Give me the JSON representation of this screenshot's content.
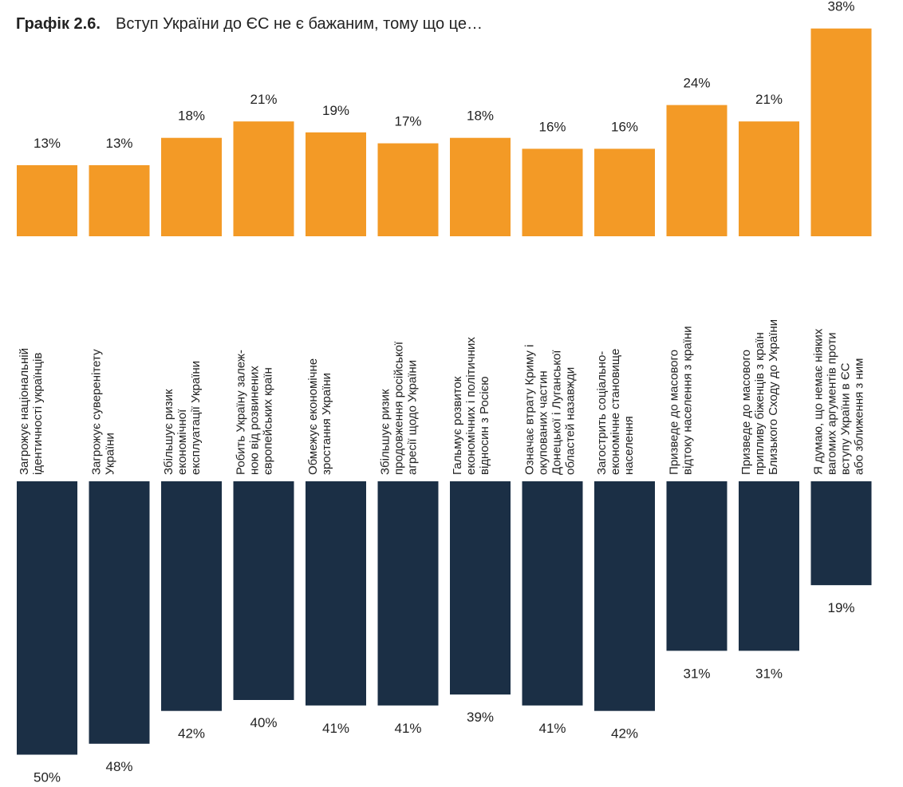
{
  "chart_data": {
    "type": "bar",
    "title_label": "Графік 2.6.",
    "title": "Вступ України до ЄС не є бажаним, тому що це…",
    "categories": [
      "Загрожує національній\nідентичності українців",
      "Загрожує суверенітету\nУкраїни",
      "Збільшує ризик\nекономічної\nексплуатації України",
      "Робить Україну залеж-\nною від розвинених\nєвропейських країн",
      "Обмежує економічне\nзростання України",
      "Збільшує ризик\nпродовження російської\nагресії щодо України",
      "Гальмує розвиток\nекономічних і політичних\nвідносин з Росією",
      "Означає втрату Криму і\nокупованих частин\nДонецької і Луганської\nобластей назавжди",
      "Загострить соціально-\nекономічне становище\nнаселення",
      "Призведе до масового\nвідтоку населення з країни",
      "Призведе до масового\nприпливу біженців з країн\nБлизького Сходу до України",
      "Я думаю, що немає ніяких\nвагомих аргументів проти\nвступу України в ЄС\nабо зближення з ним"
    ],
    "series": [
      {
        "color": "#f39a26",
        "values": [
          13,
          13,
          18,
          21,
          19,
          17,
          18,
          16,
          16,
          24,
          21,
          38
        ],
        "value_labels": [
          "13%",
          "13%",
          "18%",
          "21%",
          "19%",
          "17%",
          "18%",
          "16%",
          "16%",
          "24%",
          "21%",
          "38%"
        ]
      },
      {
        "color": "#1b2f45",
        "values": [
          50,
          48,
          42,
          40,
          41,
          41,
          39,
          41,
          42,
          31,
          31,
          19
        ],
        "value_labels": [
          "50%",
          "48%",
          "42%",
          "40%",
          "41%",
          "41%",
          "39%",
          "41%",
          "42%",
          "31%",
          "31%",
          "19%"
        ]
      }
    ]
  }
}
